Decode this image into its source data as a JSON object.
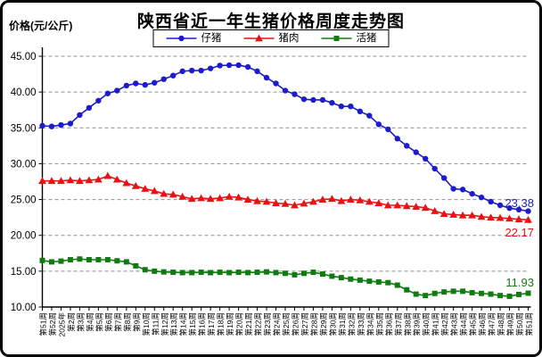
{
  "chart": {
    "title": "陕西省近一年生猪价格周度走势图",
    "y_axis_title": "价格(元/公斤)"
  },
  "chart_data": {
    "type": "line",
    "title": "陕西省近一年生猪价格周度走势图",
    "ylabel": "价格(元/公斤)",
    "xlabel": "",
    "ylim": [
      10,
      45
    ],
    "ytick_step": 5,
    "yticks": [
      "10.00",
      "15.00",
      "20.00",
      "25.00",
      "30.00",
      "35.00",
      "40.00",
      "45.00"
    ],
    "grid": "horizontal-dashed",
    "grid_color": "#909090",
    "axis_color": "#000000",
    "legend_position": "top-center",
    "categories": [
      "第51周",
      "第52周",
      "2025年",
      "第2周",
      "第3周",
      "第4周",
      "第5周",
      "第6周",
      "第7周",
      "第8周",
      "第9周",
      "第10周",
      "第11周",
      "第12周",
      "第13周",
      "第14周",
      "第15周",
      "第16周",
      "第17周",
      "第18周",
      "第19周",
      "第20周",
      "第21周",
      "第22周",
      "第23周",
      "第24周",
      "第25周",
      "第26周",
      "第27周",
      "第28周",
      "第29周",
      "第30周",
      "第31周",
      "第32周",
      "第33周",
      "第34周",
      "第35周",
      "第36周",
      "第37周",
      "第38周",
      "第39周",
      "第40周",
      "第41周",
      "第42周",
      "第43周",
      "第44周",
      "第45周",
      "第46周",
      "第47周",
      "第48周",
      "第49周",
      "第50周",
      "第51周"
    ],
    "series": [
      {
        "name": "仔猪",
        "color": "#1c1ccd",
        "marker": "circle",
        "values": [
          35.3,
          35.2,
          35.4,
          35.6,
          36.8,
          37.8,
          38.8,
          39.8,
          40.2,
          40.9,
          41.2,
          41.0,
          41.3,
          41.8,
          42.3,
          42.9,
          43.0,
          43.0,
          43.3,
          43.7,
          43.75,
          43.75,
          43.5,
          42.9,
          42.0,
          41.2,
          40.2,
          39.7,
          39.0,
          38.9,
          38.9,
          38.5,
          38.0,
          38.0,
          37.3,
          36.7,
          35.5,
          34.8,
          33.5,
          32.5,
          31.6,
          30.7,
          29.3,
          28.0,
          26.5,
          26.4,
          25.8,
          25.3,
          24.7,
          24.2,
          23.8,
          23.6,
          23.38
        ]
      },
      {
        "name": "猪肉",
        "color": "#e91212",
        "marker": "triangle",
        "values": [
          27.6,
          27.6,
          27.6,
          27.7,
          27.6,
          27.7,
          27.8,
          28.3,
          27.8,
          27.3,
          26.9,
          26.5,
          26.2,
          25.8,
          25.7,
          25.4,
          25.1,
          25.2,
          25.1,
          25.2,
          25.4,
          25.3,
          25.0,
          24.8,
          24.7,
          24.5,
          24.4,
          24.2,
          24.45,
          24.7,
          25.0,
          25.1,
          24.8,
          25.0,
          24.9,
          24.7,
          24.5,
          24.2,
          24.2,
          24.1,
          24.0,
          23.85,
          23.4,
          23.0,
          22.9,
          22.8,
          22.8,
          22.6,
          22.5,
          22.45,
          22.35,
          22.25,
          22.17
        ]
      },
      {
        "name": "活猪",
        "color": "#107c10",
        "marker": "square",
        "values": [
          16.5,
          16.3,
          16.4,
          16.6,
          16.7,
          16.6,
          16.6,
          16.6,
          16.45,
          16.3,
          15.75,
          15.2,
          15.0,
          14.9,
          14.85,
          14.8,
          14.8,
          14.85,
          14.8,
          14.85,
          14.8,
          14.85,
          14.8,
          14.85,
          14.9,
          14.8,
          14.7,
          14.5,
          14.7,
          14.85,
          14.6,
          14.3,
          14.1,
          13.9,
          13.75,
          13.6,
          13.5,
          13.4,
          13.05,
          12.4,
          11.8,
          11.6,
          11.9,
          12.1,
          12.2,
          12.2,
          12.0,
          11.9,
          11.8,
          11.6,
          11.5,
          11.75,
          11.93
        ]
      }
    ],
    "end_labels": [
      {
        "text": "23.38",
        "color": "#1c1ccd",
        "series": "仔猪"
      },
      {
        "text": "22.17",
        "color": "#e91212",
        "series": "猪肉"
      },
      {
        "text": "11.93",
        "color": "#107c10",
        "series": "活猪"
      }
    ]
  }
}
